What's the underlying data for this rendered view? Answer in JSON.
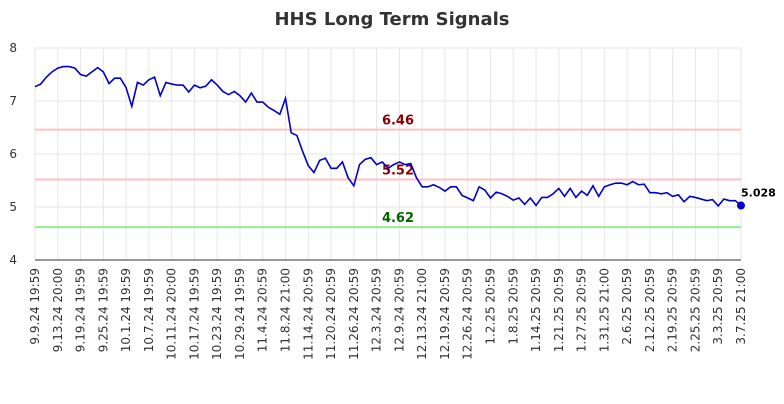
{
  "chart_data": {
    "type": "line",
    "title": "HHS Long Term Signals",
    "ylim": [
      4,
      8
    ],
    "yticks": [
      4,
      5,
      6,
      7,
      8
    ],
    "grid": true,
    "categories": [
      "9.9.24 19:59",
      null,
      null,
      null,
      "9.13.24 20:00",
      null,
      null,
      null,
      "9.19.24 19:59",
      null,
      null,
      null,
      "9.25.24 19:59",
      null,
      null,
      null,
      "10.1.24 19:59",
      null,
      null,
      null,
      "10.7.24 19:59",
      null,
      null,
      null,
      "10.11.24 20:00",
      null,
      null,
      null,
      "10.17.24 19:59",
      null,
      null,
      null,
      "10.23.24 19:59",
      null,
      null,
      null,
      "10.29.24 19:59",
      null,
      null,
      null,
      "11.4.24 20:59",
      null,
      null,
      null,
      "11.8.24 21:00",
      null,
      null,
      null,
      "11.14.24 20:59",
      null,
      null,
      null,
      "11.20.24 20:59",
      null,
      null,
      null,
      "11.26.24 20:59",
      null,
      null,
      null,
      "12.3.24 20:59",
      null,
      null,
      null,
      "12.9.24 20:59",
      null,
      null,
      null,
      "12.13.24 21:00",
      null,
      null,
      null,
      "12.19.24 20:59",
      null,
      null,
      null,
      "12.26.24 20:59",
      null,
      null,
      null,
      "1.2.25 20:59",
      null,
      null,
      null,
      "1.8.25 20:59",
      null,
      null,
      null,
      "1.14.25 20:59",
      null,
      null,
      null,
      "1.21.25 20:59",
      null,
      null,
      null,
      "1.27.25 20:59",
      null,
      null,
      null,
      "1.31.25 21:00",
      null,
      null,
      null,
      "2.6.25 20:59",
      null,
      null,
      null,
      "2.12.25 20:59",
      null,
      null,
      null,
      "2.19.25 20:59",
      null,
      null,
      null,
      "2.25.25 20:59",
      null,
      null,
      null,
      "3.3.25 20:59",
      null,
      null,
      null,
      "3.7.25 21:00"
    ],
    "series": [
      {
        "color": "#0000cc",
        "values": [
          7.27,
          7.32,
          7.45,
          7.55,
          7.62,
          7.65,
          7.65,
          7.62,
          7.5,
          7.47,
          7.55,
          7.63,
          7.55,
          7.33,
          7.43,
          7.43,
          7.25,
          6.9,
          7.35,
          7.3,
          7.4,
          7.45,
          7.1,
          7.35,
          7.32,
          7.3,
          7.3,
          7.17,
          7.3,
          7.25,
          7.28,
          7.4,
          7.3,
          7.18,
          7.12,
          7.18,
          7.1,
          6.98,
          7.15,
          6.98,
          6.98,
          6.88,
          6.82,
          6.75,
          7.05,
          6.4,
          6.35,
          6.05,
          5.78,
          5.65,
          5.88,
          5.92,
          5.73,
          5.73,
          5.85,
          5.55,
          5.4,
          5.8,
          5.9,
          5.93,
          5.8,
          5.85,
          5.73,
          5.8,
          5.85,
          5.8,
          5.82,
          5.55,
          5.38,
          5.38,
          5.42,
          5.37,
          5.3,
          5.38,
          5.38,
          5.22,
          5.17,
          5.12,
          5.38,
          5.32,
          5.17,
          5.28,
          5.25,
          5.2,
          5.13,
          5.17,
          5.05,
          5.17,
          5.03,
          5.18,
          5.18,
          5.25,
          5.35,
          5.2,
          5.35,
          5.18,
          5.3,
          5.22,
          5.4,
          5.2,
          5.38,
          5.42,
          5.45,
          5.45,
          5.42,
          5.48,
          5.42,
          5.43,
          5.27,
          5.27,
          5.25,
          5.27,
          5.2,
          5.23,
          5.1,
          5.2,
          5.18,
          5.15,
          5.12,
          5.14,
          5.02,
          5.15,
          5.12,
          5.12,
          5.028
        ]
      }
    ],
    "reference_lines": [
      {
        "value": 6.46,
        "color": "#ffc0c0",
        "label_color": "#8b0000"
      },
      {
        "value": 5.52,
        "color": "#ffc0c0",
        "label_color": "#8b0000"
      },
      {
        "value": 4.62,
        "color": "#90ee90",
        "label_color": "#006400"
      }
    ]
  }
}
